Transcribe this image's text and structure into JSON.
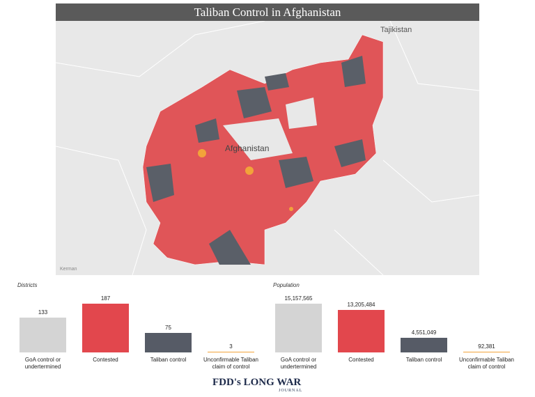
{
  "title": "Taliban Control in Afghanistan",
  "map": {
    "labels": [
      "Tajikistan",
      "Afghanistan",
      "Kerman"
    ]
  },
  "chart_data": [
    {
      "type": "bar",
      "title": "Districts",
      "categories": [
        "GoA control or undertermined",
        "Contested",
        "Taliban control",
        "Unconfirmable Taliban claim of control"
      ],
      "values": [
        133,
        187,
        75,
        3
      ],
      "colors": [
        "#d4d4d4",
        "#e2474d",
        "#565b66",
        "#f2a33a"
      ]
    },
    {
      "type": "bar",
      "title": "Population",
      "categories": [
        "GoA control or undertermined",
        "Contested",
        "Taliban control",
        "Unconfirmable Taliban claim of control"
      ],
      "values": [
        15157565,
        13205484,
        4551049,
        92381
      ],
      "value_labels": [
        "15,157,565",
        "13,205,484",
        "4,551,049",
        "92,381"
      ],
      "colors": [
        "#d4d4d4",
        "#e2474d",
        "#565b66",
        "#f2a33a"
      ]
    }
  ],
  "logo": {
    "name": "FDD's LONG WAR",
    "sub": "JOURNAL"
  }
}
